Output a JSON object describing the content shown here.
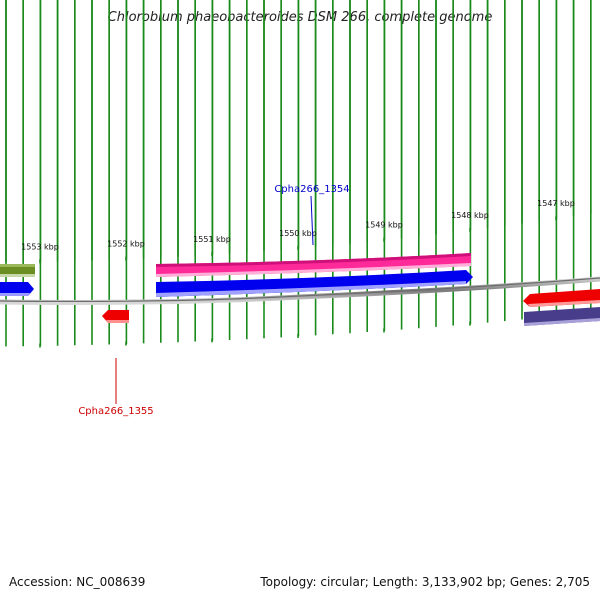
{
  "title": "Chlorobium phaeobacteroides DSM 266, complete genome",
  "footer": {
    "accession": "Accession: NC_008639",
    "summary": "Topology: circular; Length: 3,133,902 bp; Genes: 2,705"
  },
  "colors": {
    "backbone": "#888888",
    "tick": "#1a8a1a",
    "label_blue": "#0000cc",
    "label_red": "#cc0000",
    "gene_olive": "#6b8e23",
    "gene_pink": "#ff1493",
    "gene_blue": "#0000ee",
    "gene_red": "#ee0000",
    "gene_slate": "#483d8b"
  },
  "ticks": [
    {
      "kbp": 1553,
      "label": "1553 kbp"
    },
    {
      "kbp": 1552,
      "label": "1552 kbp"
    },
    {
      "kbp": 1551,
      "label": "1551 kbp"
    },
    {
      "kbp": 1550,
      "label": "1550 kbp"
    },
    {
      "kbp": 1549,
      "label": "1549 kbp"
    },
    {
      "kbp": 1548,
      "label": "1548 kbp"
    },
    {
      "kbp": 1547,
      "label": "1547 kbp"
    }
  ],
  "gene_labels": [
    {
      "text": "Cpha266_1354",
      "color": "#0000cc"
    },
    {
      "text": "Cpha266_1355",
      "color": "#cc0000"
    }
  ]
}
